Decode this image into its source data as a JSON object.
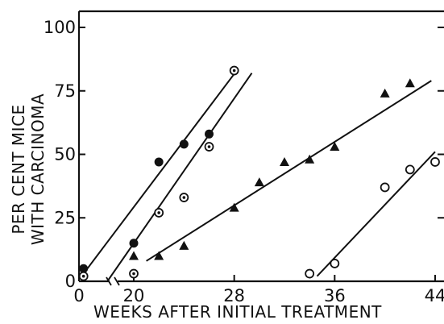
{
  "chart_data": {
    "type": "scatter",
    "title": "",
    "xlabel": "WEEKS AFTER INITIAL TREATMENT",
    "ylabel_lines": [
      "PER CENT MICE",
      "WITH CARCINOMA"
    ],
    "xlim": [
      0,
      44
    ],
    "ylim": [
      0,
      100
    ],
    "x_axis_break": true,
    "x_ticks": [
      {
        "value": 0,
        "label": "0"
      },
      {
        "value": 20,
        "label": "20"
      },
      {
        "value": 28,
        "label": "28"
      },
      {
        "value": 36,
        "label": "36"
      },
      {
        "value": 44,
        "label": "44"
      }
    ],
    "y_ticks": [
      {
        "value": 0,
        "label": "0"
      },
      {
        "value": 25,
        "label": "25"
      },
      {
        "value": 50,
        "label": "50"
      },
      {
        "value": 75,
        "label": "75"
      },
      {
        "value": 100,
        "label": "100"
      }
    ],
    "grid": false,
    "legend": "none",
    "series": [
      {
        "marker": "filled-circle",
        "points": [
          [
            16,
            5
          ],
          [
            20,
            15
          ],
          [
            22,
            47
          ],
          [
            24,
            54
          ],
          [
            26,
            58
          ],
          [
            28,
            83
          ]
        ],
        "fit": [
          [
            16,
            3
          ],
          [
            28.2,
            83
          ]
        ]
      },
      {
        "marker": "dotted-circle",
        "points": [
          [
            16,
            2
          ],
          [
            20,
            3
          ],
          [
            22,
            27
          ],
          [
            24,
            33
          ],
          [
            26,
            53
          ],
          [
            28,
            83
          ]
        ],
        "fit": [
          [
            17.9,
            0
          ],
          [
            29.4,
            82
          ]
        ]
      },
      {
        "marker": "filled-triangle",
        "points": [
          [
            20,
            10
          ],
          [
            22,
            10
          ],
          [
            24,
            14
          ],
          [
            28,
            29
          ],
          [
            30,
            39
          ],
          [
            32,
            47
          ],
          [
            34,
            48
          ],
          [
            36,
            53
          ],
          [
            40,
            74
          ],
          [
            42,
            78
          ]
        ],
        "fit": [
          [
            21,
            8
          ],
          [
            43.7,
            79
          ]
        ]
      },
      {
        "marker": "open-circle",
        "points": [
          [
            34,
            3
          ],
          [
            36,
            7
          ],
          [
            40,
            37
          ],
          [
            42,
            44
          ],
          [
            44,
            47
          ]
        ],
        "fit": [
          [
            34.6,
            2
          ],
          [
            44,
            51
          ]
        ]
      }
    ]
  }
}
